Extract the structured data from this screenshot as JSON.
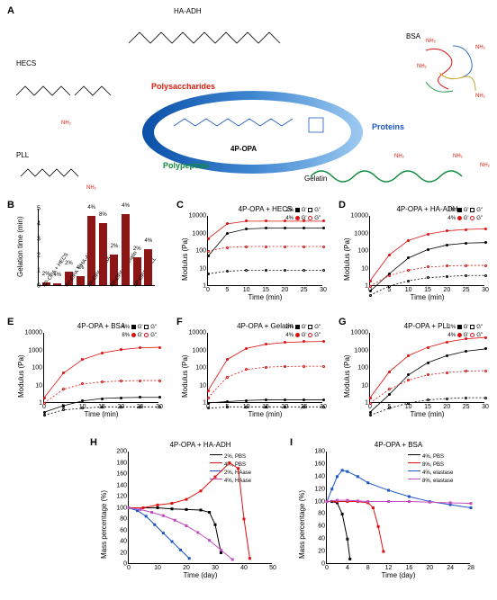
{
  "panels": {
    "A": {
      "label": "A",
      "center_mol": "4P-OPA",
      "arc_labels": {
        "poly": "Polysaccharides",
        "prot": "Proteins",
        "pept": "Polypeptide"
      },
      "mols": {
        "hecs": "HECS",
        "haadh": "HA-ADH",
        "bsa": "BSA",
        "pll": "PLL",
        "gelatin": "Gelatin"
      },
      "nh2": "NH₂",
      "arc_colors": {
        "outer": "#0a4fa8",
        "mid": "#3f86d1",
        "inner": "#9ecaf0",
        "light": "#d2e7f8"
      }
    },
    "B": {
      "label": "B",
      "ylab": "Gelation time (min)",
      "xlab": "",
      "ymax": 5,
      "ytick": 1,
      "bar_color": "#8c1616",
      "categories": [
        "4P-OPA + HECS",
        "4P-OPA + HECS",
        "4P-OPA + HA-ADH",
        "4P-OPA + HA-ADH",
        "4P-OPA + BSA",
        "4P-OPA + BSA",
        "4P-OPA + Gelatin",
        "4P-OPA + Gelatin",
        "4P-OPA + PLL",
        "4P-OPA + PLL"
      ],
      "pct": [
        "2%",
        "4%",
        "2%",
        "4%",
        "4%",
        "8%",
        "2%",
        "4%",
        "2%",
        "4%"
      ],
      "values": [
        0.15,
        0.12,
        0.9,
        0.6,
        4.5,
        4.0,
        2.0,
        4.6,
        1.8,
        2.3
      ]
    },
    "rheo": {
      "titles": {
        "C": "4P-OPA + HECS",
        "D": "4P-OPA + HA-ADH",
        "E": "4P-OPA + BSA",
        "F": "4P-OPA + Gelatin",
        "G": "4P-OPA + PLL"
      },
      "xlab": "Time (min)",
      "ylab": "Modulus (Pa)",
      "xmax": 30,
      "xticks": [
        0,
        5,
        10,
        15,
        20,
        25,
        30
      ],
      "yticks": [
        1,
        10,
        100,
        1000,
        10000
      ],
      "legend": {
        "C": [
          {
            "t": "2%",
            "m": "sq"
          },
          {
            "t": "4%",
            "m": "ci"
          }
        ],
        "D": [
          {
            "t": "2%",
            "m": "sq"
          },
          {
            "t": "4%",
            "m": "ci"
          }
        ],
        "E": [
          {
            "t": "4%",
            "m": "sq"
          },
          {
            "t": "8%",
            "m": "ci"
          }
        ],
        "F": [
          {
            "t": "2%",
            "m": "sq"
          },
          {
            "t": "4%",
            "m": "ci"
          }
        ],
        "G": [
          {
            "t": "2%",
            "m": "sq"
          },
          {
            "t": "4%",
            "m": "ci"
          }
        ]
      },
      "series": {
        "C": {
          "g1p_low": [
            50,
            1000,
            1800,
            2000,
            2000,
            2000,
            2000
          ],
          "g1pp_low": [
            5,
            7,
            8,
            8,
            8,
            8,
            8
          ],
          "g1p_hi": [
            500,
            3500,
            5000,
            5000,
            5000,
            5000,
            5000
          ],
          "g1pp_hi": [
            100,
            160,
            180,
            180,
            180,
            180,
            180
          ]
        },
        "D": {
          "g1p_low": [
            0.5,
            5,
            40,
            120,
            220,
            280,
            300
          ],
          "g1pp_low": [
            0.3,
            1,
            2,
            3,
            3.5,
            4,
            4
          ],
          "g1p_hi": [
            2,
            60,
            400,
            900,
            1400,
            1700,
            1800
          ],
          "g1pp_hi": [
            1,
            4,
            8,
            12,
            14,
            15,
            15
          ]
        },
        "E": {
          "g1p_low": [
            0.3,
            0.7,
            1.3,
            1.8,
            2.0,
            2.1,
            2.1
          ],
          "g1pp_low": [
            0.2,
            0.4,
            0.5,
            0.6,
            0.6,
            0.6,
            0.6
          ],
          "g1p_hi": [
            2,
            50,
            300,
            700,
            1100,
            1400,
            1500
          ],
          "g1pp_hi": [
            1,
            6,
            12,
            16,
            18,
            19,
            19
          ]
        },
        "F": {
          "g1p_low": [
            1,
            1.2,
            1.4,
            1.5,
            1.5,
            1.5,
            1.5
          ],
          "g1pp_low": [
            0.5,
            0.6,
            0.6,
            0.6,
            0.6,
            0.6,
            0.6
          ],
          "g1p_hi": [
            5,
            300,
            1300,
            2200,
            2800,
            3100,
            3200
          ],
          "g1pp_hi": [
            2,
            30,
            80,
            110,
            120,
            125,
            125
          ]
        },
        "G": {
          "g1p_low": [
            0.3,
            3,
            40,
            200,
            500,
            900,
            1200
          ],
          "g1pp_low": [
            0.2,
            0.5,
            1,
            1.5,
            1.8,
            2,
            2
          ],
          "g1p_hi": [
            2,
            60,
            500,
            1500,
            3000,
            4500,
            5500
          ],
          "g1pp_hi": [
            1,
            6,
            20,
            40,
            55,
            65,
            70
          ]
        }
      }
    },
    "degr": {
      "titles": {
        "H": "4P-OPA + HA-ADH",
        "I": "4P-OPA + BSA"
      },
      "xlab": "Time (day)",
      "ylab": "Mass percentage (%)",
      "H": {
        "xmax": 50,
        "xticks": [
          0,
          10,
          20,
          30,
          40,
          50
        ],
        "ymin": 0,
        "ymax": 200,
        "yticks": [
          0,
          20,
          40,
          60,
          80,
          100,
          120,
          140,
          160,
          180,
          200
        ],
        "legend": [
          "2%, PBS",
          "4%, PBS",
          "2%, HAase",
          "4%, HAase"
        ],
        "colors": [
          "#000000",
          "#d11",
          "#1b56c7",
          "#c04cc0"
        ],
        "series": {
          "a": [
            [
              0,
              100
            ],
            [
              5,
              100
            ],
            [
              10,
              100
            ],
            [
              15,
              98
            ],
            [
              20,
              97
            ],
            [
              25,
              96
            ],
            [
              28,
              92
            ],
            [
              30,
              70
            ],
            [
              32,
              20
            ]
          ],
          "b": [
            [
              0,
              100
            ],
            [
              5,
              100
            ],
            [
              10,
              105
            ],
            [
              15,
              108
            ],
            [
              20,
              115
            ],
            [
              25,
              130
            ],
            [
              30,
              155
            ],
            [
              35,
              180
            ],
            [
              38,
              170
            ],
            [
              40,
              80
            ],
            [
              42,
              10
            ]
          ],
          "c": [
            [
              0,
              100
            ],
            [
              3,
              95
            ],
            [
              6,
              85
            ],
            [
              9,
              70
            ],
            [
              12,
              55
            ],
            [
              15,
              40
            ],
            [
              18,
              25
            ],
            [
              21,
              10
            ]
          ],
          "d": [
            [
              0,
              100
            ],
            [
              4,
              97
            ],
            [
              8,
              92
            ],
            [
              12,
              86
            ],
            [
              16,
              78
            ],
            [
              20,
              68
            ],
            [
              24,
              56
            ],
            [
              28,
              42
            ],
            [
              32,
              25
            ],
            [
              36,
              8
            ]
          ]
        }
      },
      "I": {
        "xmax": 28,
        "xticks": [
          0,
          4,
          8,
          12,
          16,
          20,
          24,
          28
        ],
        "ymin": 0,
        "ymax": 180,
        "yticks": [
          0,
          20,
          40,
          60,
          80,
          100,
          120,
          140,
          160,
          180
        ],
        "legend": [
          "4%, PBS",
          "8%, PBS",
          "4%, elastase",
          "8%, elastase"
        ],
        "colors": [
          "#000000",
          "#d11",
          "#1b56c7",
          "#c04cc0"
        ],
        "series": {
          "a": [
            [
              0,
              100
            ],
            [
              1,
              100
            ],
            [
              2,
              98
            ],
            [
              3,
              80
            ],
            [
              4,
              40
            ],
            [
              4.5,
              8
            ]
          ],
          "b": [
            [
              0,
              100
            ],
            [
              2,
              100
            ],
            [
              4,
              100
            ],
            [
              6,
              100
            ],
            [
              8,
              98
            ],
            [
              9,
              90
            ],
            [
              10,
              60
            ],
            [
              11,
              20
            ]
          ],
          "c": [
            [
              0,
              100
            ],
            [
              1,
              120
            ],
            [
              2,
              140
            ],
            [
              3,
              150
            ],
            [
              4,
              148
            ],
            [
              6,
              140
            ],
            [
              8,
              130
            ],
            [
              12,
              118
            ],
            [
              16,
              108
            ],
            [
              20,
              100
            ],
            [
              24,
              95
            ],
            [
              28,
              90
            ]
          ],
          "d": [
            [
              0,
              100
            ],
            [
              2,
              102
            ],
            [
              4,
              102
            ],
            [
              6,
              101
            ],
            [
              8,
              100
            ],
            [
              12,
              100
            ],
            [
              16,
              100
            ],
            [
              20,
              99
            ],
            [
              24,
              98
            ],
            [
              28,
              97
            ]
          ]
        }
      }
    }
  }
}
